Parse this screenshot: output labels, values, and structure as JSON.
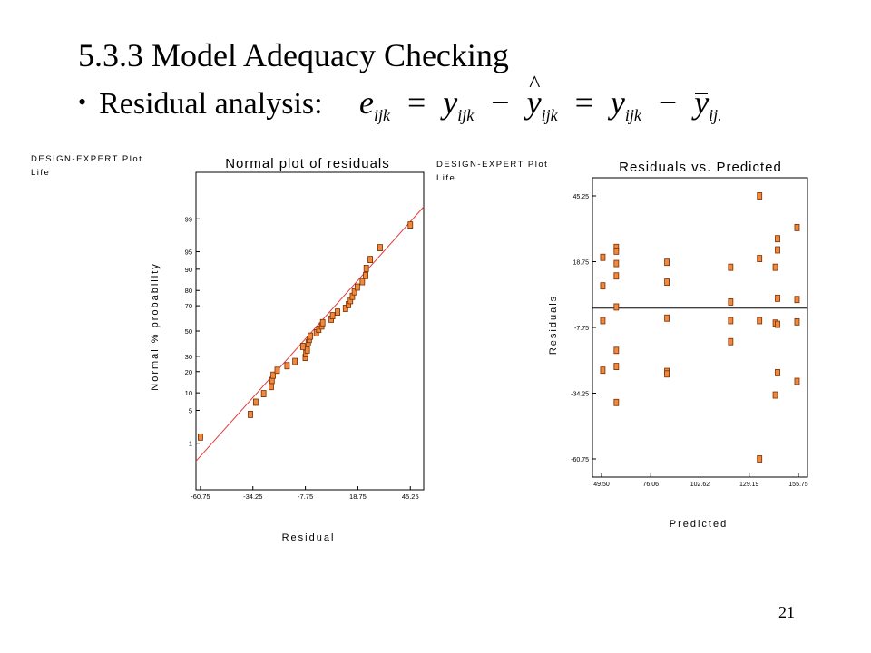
{
  "slide": {
    "title": "5.3.3 Model Adequacy Checking",
    "bullet": "Residual analysis:",
    "page_number": "21",
    "formula": {
      "e": "e",
      "e_sub": "ijk",
      "eq1": "=",
      "y1": "y",
      "y1_sub": "ijk",
      "minus1": "−",
      "yhat": "y",
      "yhat_sub": "ijk",
      "eq2": "=",
      "y2": "y",
      "y2_sub": "ijk",
      "minus2": "−",
      "ybar": "y",
      "ybar_sub": "ij."
    }
  },
  "left_header": {
    "line1": "DESIGN-EXPERT Plot",
    "line2": "Life"
  },
  "right_header": {
    "line1": "DESIGN-EXPERT Plot",
    "line2": "Life"
  },
  "colors": {
    "point_fill": "#ee8a3c",
    "point_stroke": "#7a2a00",
    "fit_line": "#e23b3b"
  },
  "chart_data": [
    {
      "type": "scatter",
      "title": "Normal plot of residuals",
      "xlabel": "Residual",
      "ylabel": "Normal % probability",
      "x_ticks": [
        "-60.75",
        "-34.25",
        "-7.75",
        "18.75",
        "45.25"
      ],
      "x_tick_values": [
        -60.75,
        -34.25,
        -7.75,
        18.75,
        45.25
      ],
      "xlim": [
        -63,
        52
      ],
      "y_ticks": [
        "1",
        "5",
        "10",
        "20",
        "30",
        "50",
        "70",
        "80",
        "90",
        "95",
        "99"
      ],
      "y_tick_values": [
        1,
        5,
        10,
        20,
        30,
        50,
        70,
        80,
        90,
        95,
        99
      ],
      "ylim": [
        0.05,
        99.95
      ],
      "scale": "normal-probability",
      "reference_line": {
        "x": [
          -63,
          52
        ],
        "y": [
          0.35,
          99.5
        ]
      },
      "points": [
        {
          "x": -60.75,
          "y": 1.4
        },
        {
          "x": -35.5,
          "y": 4.2
        },
        {
          "x": -32.8,
          "y": 7.0
        },
        {
          "x": -28.8,
          "y": 9.7
        },
        {
          "x": -25.0,
          "y": 12.5
        },
        {
          "x": -24.6,
          "y": 15.3
        },
        {
          "x": -24.0,
          "y": 18.0
        },
        {
          "x": -22.0,
          "y": 20.8
        },
        {
          "x": -17.0,
          "y": 23.6
        },
        {
          "x": -13.0,
          "y": 26.4
        },
        {
          "x": -7.8,
          "y": 29.2
        },
        {
          "x": -7.5,
          "y": 31.9
        },
        {
          "x": -6.8,
          "y": 34.7
        },
        {
          "x": -9.0,
          "y": 37.5
        },
        {
          "x": -6.3,
          "y": 40.3
        },
        {
          "x": -5.8,
          "y": 43.1
        },
        {
          "x": -5.2,
          "y": 45.8
        },
        {
          "x": -2.2,
          "y": 48.6
        },
        {
          "x": -1.0,
          "y": 51.4
        },
        {
          "x": 0.5,
          "y": 54.2
        },
        {
          "x": 1.0,
          "y": 56.9
        },
        {
          "x": 5.3,
          "y": 59.7
        },
        {
          "x": 6.0,
          "y": 62.5
        },
        {
          "x": 8.5,
          "y": 65.3
        },
        {
          "x": 12.5,
          "y": 68.1
        },
        {
          "x": 14.0,
          "y": 70.8
        },
        {
          "x": 15.0,
          "y": 73.6
        },
        {
          "x": 16.0,
          "y": 76.4
        },
        {
          "x": 17.0,
          "y": 79.2
        },
        {
          "x": 18.5,
          "y": 81.9
        },
        {
          "x": 21.0,
          "y": 84.7
        },
        {
          "x": 22.7,
          "y": 87.5
        },
        {
          "x": 23.0,
          "y": 90.3
        },
        {
          "x": 25.0,
          "y": 93.1
        },
        {
          "x": 30.0,
          "y": 95.8
        },
        {
          "x": 45.25,
          "y": 98.6
        }
      ]
    },
    {
      "type": "scatter",
      "title": "Residuals vs. Predicted",
      "xlabel": "Predicted",
      "ylabel": "Residuals",
      "x_ticks": [
        "49.50",
        "76.06",
        "102.62",
        "129.19",
        "155.75"
      ],
      "x_tick_values": [
        49.5,
        76.06,
        102.62,
        129.19,
        155.75
      ],
      "xlim": [
        49.5,
        155.75
      ],
      "y_ticks": [
        "45.25",
        "18.75",
        "-7.75",
        "-34.25",
        "-60.75"
      ],
      "y_tick_values": [
        45.25,
        18.75,
        -7.75,
        -34.25,
        -60.75
      ],
      "ylim": [
        -60.75,
        45.25
      ],
      "zero_line": 0,
      "points": [
        {
          "x": 50.2,
          "y": 20.5
        },
        {
          "x": 50.2,
          "y": 9.0
        },
        {
          "x": 50.2,
          "y": -5.0
        },
        {
          "x": 50.2,
          "y": -25.0
        },
        {
          "x": 57.5,
          "y": 24.5
        },
        {
          "x": 57.5,
          "y": 23.0
        },
        {
          "x": 57.5,
          "y": 18.0
        },
        {
          "x": 57.5,
          "y": 13.0
        },
        {
          "x": 57.5,
          "y": 0.5
        },
        {
          "x": 57.5,
          "y": -17.0
        },
        {
          "x": 57.5,
          "y": -23.5
        },
        {
          "x": 57.5,
          "y": -38.0
        },
        {
          "x": 84.8,
          "y": 18.5
        },
        {
          "x": 84.8,
          "y": 10.5
        },
        {
          "x": 84.8,
          "y": -4.0
        },
        {
          "x": 84.8,
          "y": -25.5
        },
        {
          "x": 84.8,
          "y": -26.5
        },
        {
          "x": 119.2,
          "y": 16.5
        },
        {
          "x": 119.2,
          "y": 2.5
        },
        {
          "x": 119.2,
          "y": -5.0
        },
        {
          "x": 119.2,
          "y": -13.5
        },
        {
          "x": 134.8,
          "y": 45.25
        },
        {
          "x": 134.8,
          "y": 20.0
        },
        {
          "x": 134.8,
          "y": -5.0
        },
        {
          "x": 134.8,
          "y": -60.75
        },
        {
          "x": 143.3,
          "y": 16.5
        },
        {
          "x": 143.3,
          "y": -6.0
        },
        {
          "x": 143.3,
          "y": -35.0
        },
        {
          "x": 144.5,
          "y": 28.0
        },
        {
          "x": 144.5,
          "y": 23.5
        },
        {
          "x": 144.5,
          "y": 4.0
        },
        {
          "x": 144.5,
          "y": -6.5
        },
        {
          "x": 144.5,
          "y": -26.0
        },
        {
          "x": 155.0,
          "y": 32.5
        },
        {
          "x": 155.0,
          "y": 3.5
        },
        {
          "x": 155.0,
          "y": -5.5
        },
        {
          "x": 155.0,
          "y": -29.5
        }
      ]
    }
  ]
}
